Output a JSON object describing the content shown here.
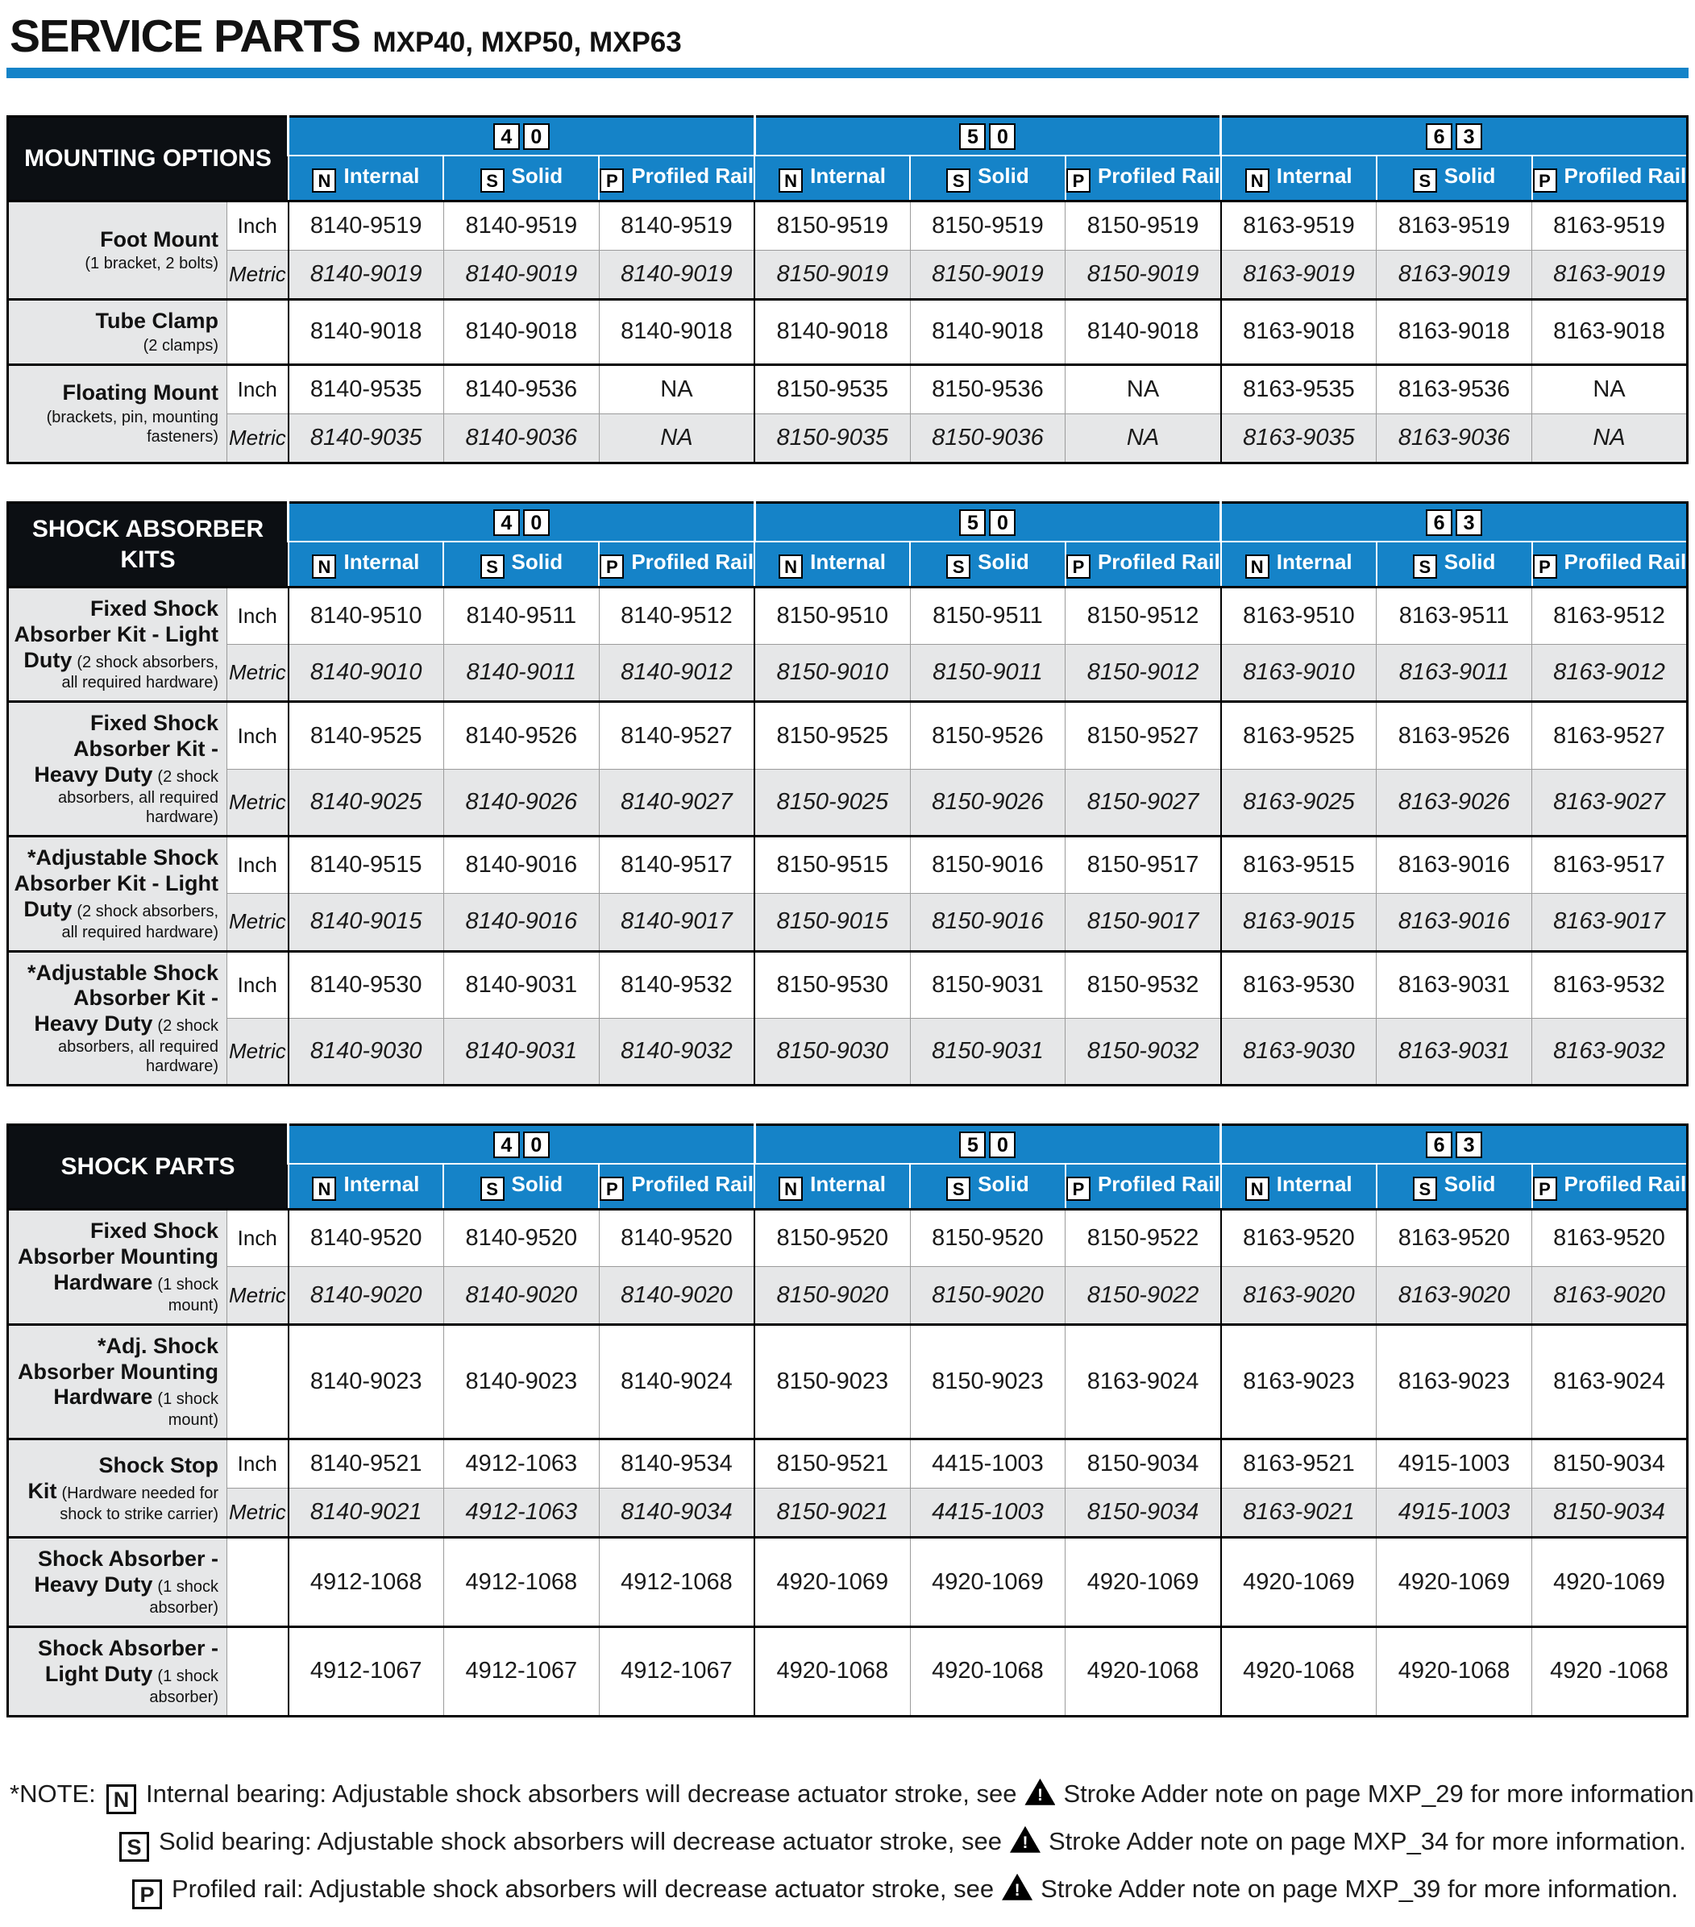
{
  "page": {
    "title": "SERVICE PARTS",
    "subtitle": "MXP40, MXP50, MXP63"
  },
  "colors": {
    "accent_blue": "#1583c8",
    "header_dark": "#0c0f13",
    "row_shade": "#e6e7e8"
  },
  "icons": {
    "warning": "warning-triangle-icon"
  },
  "header_groups": [
    {
      "digits": [
        "4",
        "0"
      ]
    },
    {
      "digits": [
        "5",
        "0"
      ]
    },
    {
      "digits": [
        "6",
        "3"
      ]
    }
  ],
  "sub_headers": [
    {
      "box": "N",
      "label": "Internal"
    },
    {
      "box": "S",
      "label": "Solid"
    },
    {
      "box": "P",
      "label": "Profiled Rail"
    }
  ],
  "tables": [
    {
      "id": "mounting-options",
      "title": "MOUNTING OPTIONS",
      "rows": [
        {
          "label": "Foot Mount",
          "sublabel": "(1 bracket, 2 bolts)",
          "lines": [
            {
              "unit": "Inch",
              "metric": false,
              "cells": [
                "8140-9519",
                "8140-9519",
                "8140-9519",
                "8150-9519",
                "8150-9519",
                "8150-9519",
                "8163-9519",
                "8163-9519",
                "8163-9519"
              ]
            },
            {
              "unit": "Metric",
              "metric": true,
              "cells": [
                "8140-9019",
                "8140-9019",
                "8140-9019",
                "8150-9019",
                "8150-9019",
                "8150-9019",
                "8163-9019",
                "8163-9019",
                "8163-9019"
              ]
            }
          ]
        },
        {
          "label": "Tube Clamp",
          "sublabel": "(2 clamps)",
          "lines": [
            {
              "unit": "",
              "metric": false,
              "cells": [
                "8140-9018",
                "8140-9018",
                "8140-9018",
                "8140-9018",
                "8140-9018",
                "8140-9018",
                "8163-9018",
                "8163-9018",
                "8163-9018"
              ]
            }
          ]
        },
        {
          "label": "Floating Mount",
          "sublabel": "(brackets, pin, mounting fasteners)",
          "lines": [
            {
              "unit": "Inch",
              "metric": false,
              "cells": [
                "8140-9535",
                "8140-9536",
                "NA",
                "8150-9535",
                "8150-9536",
                "NA",
                "8163-9535",
                "8163-9536",
                "NA"
              ]
            },
            {
              "unit": "Metric",
              "metric": true,
              "cells": [
                "8140-9035",
                "8140-9036",
                "NA",
                "8150-9035",
                "8150-9036",
                "NA",
                "8163-9035",
                "8163-9036",
                "NA"
              ]
            }
          ]
        }
      ]
    },
    {
      "id": "shock-absorber-kits",
      "title": "SHOCK ABSORBER KITS",
      "rows": [
        {
          "label": "Fixed Shock Absorber Kit - Light Duty",
          "sublabel": "(2 shock absorbers, all required hardware)",
          "lines": [
            {
              "unit": "Inch",
              "metric": false,
              "cells": [
                "8140-9510",
                "8140-9511",
                "8140-9512",
                "8150-9510",
                "8150-9511",
                "8150-9512",
                "8163-9510",
                "8163-9511",
                "8163-9512"
              ]
            },
            {
              "unit": "Metric",
              "metric": true,
              "cells": [
                "8140-9010",
                "8140-9011",
                "8140-9012",
                "8150-9010",
                "8150-9011",
                "8150-9012",
                "8163-9010",
                "8163-9011",
                "8163-9012"
              ]
            }
          ]
        },
        {
          "label": "Fixed Shock Absorber Kit - Heavy Duty",
          "sublabel": "(2 shock absorbers, all required hardware)",
          "lines": [
            {
              "unit": "Inch",
              "metric": false,
              "cells": [
                "8140-9525",
                "8140-9526",
                "8140-9527",
                "8150-9525",
                "8150-9526",
                "8150-9527",
                "8163-9525",
                "8163-9526",
                "8163-9527"
              ]
            },
            {
              "unit": "Metric",
              "metric": true,
              "cells": [
                "8140-9025",
                "8140-9026",
                "8140-9027",
                "8150-9025",
                "8150-9026",
                "8150-9027",
                "8163-9025",
                "8163-9026",
                "8163-9027"
              ]
            }
          ]
        },
        {
          "label": "*Adjustable Shock Absorber Kit - Light Duty",
          "sublabel": "(2 shock absorbers, all required hardware)",
          "lines": [
            {
              "unit": "Inch",
              "metric": false,
              "cells": [
                "8140-9515",
                "8140-9016",
                "8140-9517",
                "8150-9515",
                "8150-9016",
                "8150-9517",
                "8163-9515",
                "8163-9016",
                "8163-9517"
              ]
            },
            {
              "unit": "Metric",
              "metric": true,
              "cells": [
                "8140-9015",
                "8140-9016",
                "8140-9017",
                "8150-9015",
                "8150-9016",
                "8150-9017",
                "8163-9015",
                "8163-9016",
                "8163-9017"
              ]
            }
          ]
        },
        {
          "label": "*Adjustable Shock Absorber Kit - Heavy Duty",
          "sublabel": "(2 shock absorbers, all required hardware)",
          "lines": [
            {
              "unit": "Inch",
              "metric": false,
              "cells": [
                "8140-9530",
                "8140-9031",
                "8140-9532",
                "8150-9530",
                "8150-9031",
                "8150-9532",
                "8163-9530",
                "8163-9031",
                "8163-9532"
              ]
            },
            {
              "unit": "Metric",
              "metric": true,
              "cells": [
                "8140-9030",
                "8140-9031",
                "8140-9032",
                "8150-9030",
                "8150-9031",
                "8150-9032",
                "8163-9030",
                "8163-9031",
                "8163-9032"
              ]
            }
          ]
        }
      ]
    },
    {
      "id": "shock-parts",
      "title": "SHOCK PARTS",
      "rows": [
        {
          "label": "Fixed Shock Absorber Mounting Hardware",
          "sublabel": "(1 shock mount)",
          "lines": [
            {
              "unit": "Inch",
              "metric": false,
              "cells": [
                "8140-9520",
                "8140-9520",
                "8140-9520",
                "8150-9520",
                "8150-9520",
                "8150-9522",
                "8163-9520",
                "8163-9520",
                "8163-9520"
              ]
            },
            {
              "unit": "Metric",
              "metric": true,
              "cells": [
                "8140-9020",
                "8140-9020",
                "8140-9020",
                "8150-9020",
                "8150-9020",
                "8150-9022",
                "8163-9020",
                "8163-9020",
                "8163-9020"
              ]
            }
          ]
        },
        {
          "label": "*Adj. Shock Absorber Mounting Hardware",
          "sublabel": "(1 shock mount)",
          "lines": [
            {
              "unit": "",
              "metric": false,
              "cells": [
                "8140-9023",
                "8140-9023",
                "8140-9024",
                "8150-9023",
                "8150-9023",
                "8163-9024",
                "8163-9023",
                "8163-9023",
                "8163-9024"
              ]
            }
          ]
        },
        {
          "label": "Shock Stop Kit",
          "sublabel": "(Hardware needed for shock to strike carrier)",
          "lines": [
            {
              "unit": "Inch",
              "metric": false,
              "cells": [
                "8140-9521",
                "4912-1063",
                "8140-9534",
                "8150-9521",
                "4415-1003",
                "8150-9034",
                "8163-9521",
                "4915-1003",
                "8150-9034"
              ]
            },
            {
              "unit": "Metric",
              "metric": true,
              "cells": [
                "8140-9021",
                "4912-1063",
                "8140-9034",
                "8150-9021",
                "4415-1003",
                "8150-9034",
                "8163-9021",
                "4915-1003",
                "8150-9034"
              ]
            }
          ]
        },
        {
          "label": "Shock Absorber - Heavy Duty",
          "sublabel": "(1 shock absorber)",
          "lines": [
            {
              "unit": "",
              "metric": false,
              "cells": [
                "4912-1068",
                "4912-1068",
                "4912-1068",
                "4920-1069",
                "4920-1069",
                "4920-1069",
                "4920-1069",
                "4920-1069",
                "4920-1069"
              ]
            }
          ]
        },
        {
          "label": "Shock Absorber - Light Duty",
          "sublabel": "(1 shock absorber)",
          "lines": [
            {
              "unit": "",
              "metric": false,
              "cells": [
                "4912-1067",
                "4912-1067",
                "4912-1067",
                "4920-1068",
                "4920-1068",
                "4920-1068",
                "4920-1068",
                "4920-1068",
                "4920 -1068"
              ]
            }
          ]
        }
      ]
    }
  ],
  "notes": {
    "prefix": "*NOTE:",
    "items": [
      {
        "box": "N",
        "before": "Internal bearing: Adjustable shock absorbers will decrease actuator stroke, see",
        "after": "Stroke Adder note on page MXP_29 for more information."
      },
      {
        "box": "S",
        "before": "Solid bearing: Adjustable shock absorbers will decrease actuator stroke, see",
        "after": "Stroke Adder note on page MXP_34 for more information."
      },
      {
        "box": "P",
        "before": "Profiled rail: Adjustable shock absorbers will decrease actuator stroke, see",
        "after": "Stroke Adder note on page MXP_39 for more information."
      }
    ]
  }
}
